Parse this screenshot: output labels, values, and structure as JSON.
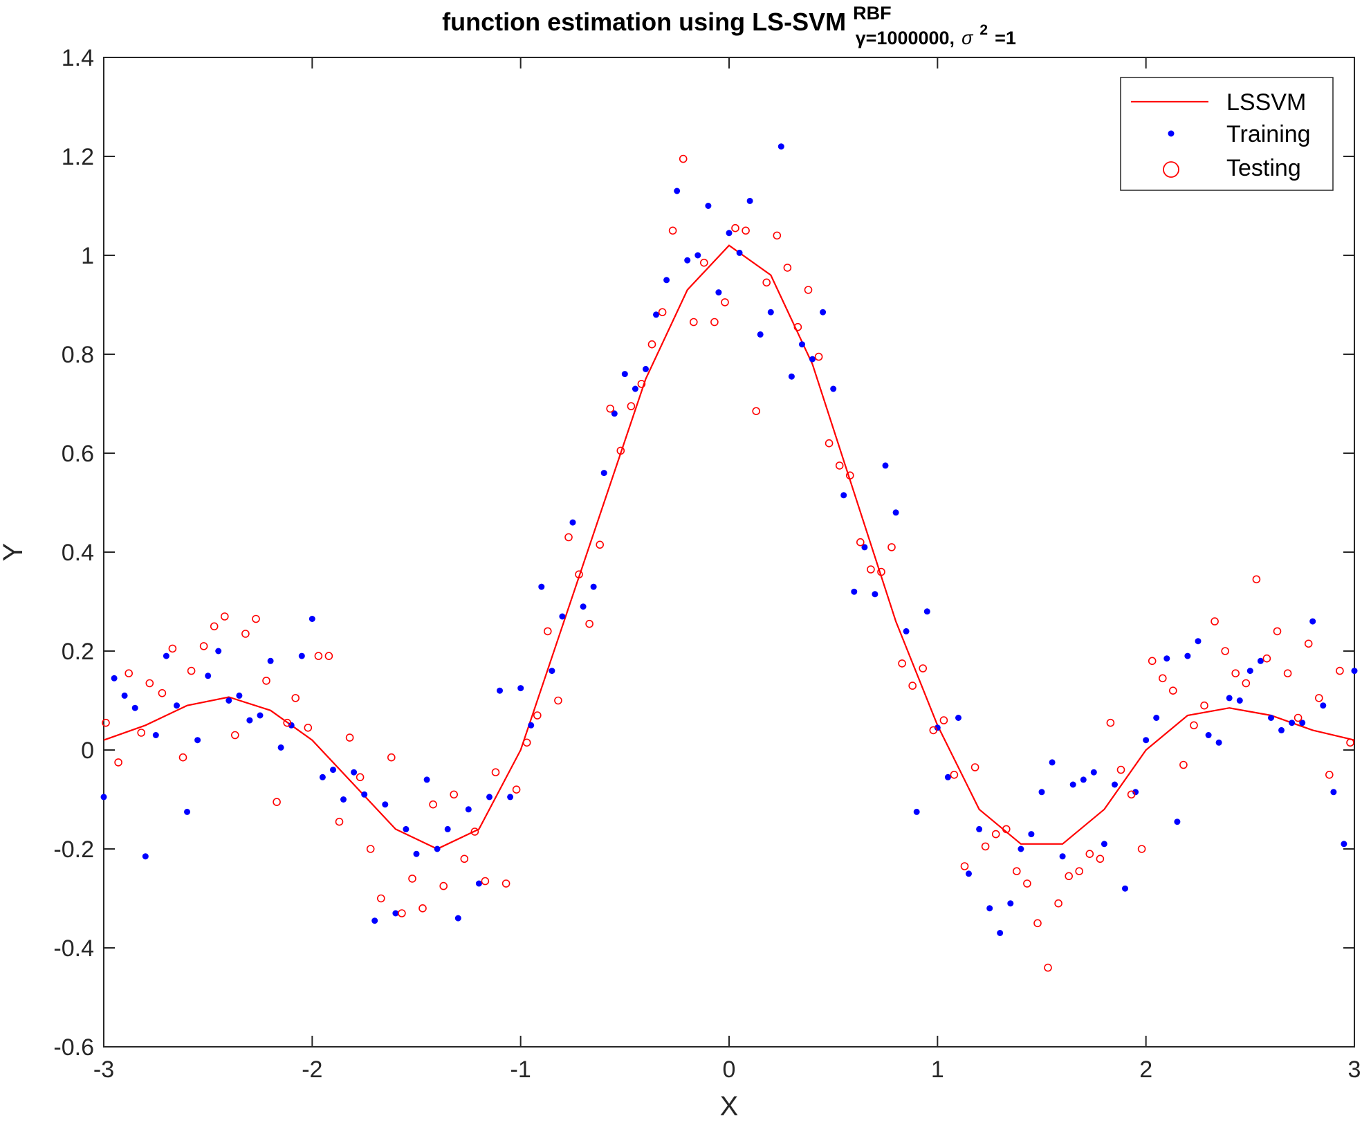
{
  "colors": {
    "training": "#0000ff",
    "testing": "#ff0000",
    "lssvm": "#ff0000",
    "axis": "#262626"
  },
  "chart_data": {
    "type": "scatter",
    "title": {
      "main": "function estimation using  LS-SVM",
      "superscript": "RBF",
      "subscript_gamma": "γ=1000000,",
      "subscript_sigma": "σ",
      "subscript_sigma_power": "2",
      "subscript_end": "=1"
    },
    "xlabel": "X",
    "ylabel": "Y",
    "xlim": [
      -3,
      3
    ],
    "ylim": [
      -0.6,
      1.4
    ],
    "x_ticks": [
      -3,
      -2,
      -1,
      0,
      1,
      2,
      3
    ],
    "x_tick_labels": [
      "-3",
      "-2",
      "-1",
      "0",
      "1",
      "2",
      "3"
    ],
    "y_ticks": [
      -0.6,
      -0.4,
      -0.2,
      0,
      0.2,
      0.4,
      0.6,
      0.8,
      1,
      1.2,
      1.4
    ],
    "y_tick_labels": [
      "-0.6",
      "-0.4",
      "-0.2",
      "0",
      "0.2",
      "0.4",
      "0.6",
      "0.8",
      "1",
      "1.2",
      "1.4"
    ],
    "grid": false,
    "legend_position": "top-right",
    "series": [
      {
        "name": "LSSVM",
        "kind": "line",
        "x": [
          -3,
          -2.8,
          -2.6,
          -2.4,
          -2.2,
          -2.0,
          -1.8,
          -1.6,
          -1.4,
          -1.2,
          -1.0,
          -0.8,
          -0.6,
          -0.4,
          -0.2,
          0,
          0.2,
          0.4,
          0.6,
          0.8,
          1.0,
          1.2,
          1.4,
          1.6,
          1.8,
          2.0,
          2.2,
          2.4,
          2.6,
          2.8,
          3.0
        ],
        "y": [
          0.02,
          0.05,
          0.09,
          0.107,
          0.08,
          0.02,
          -0.07,
          -0.16,
          -0.2,
          -0.16,
          0.0,
          0.25,
          0.5,
          0.75,
          0.93,
          1.02,
          0.96,
          0.78,
          0.52,
          0.26,
          0.05,
          -0.12,
          -0.19,
          -0.19,
          -0.12,
          0.0,
          0.07,
          0.085,
          0.07,
          0.04,
          0.02
        ]
      },
      {
        "name": "Training",
        "kind": "dots",
        "x": [
          -3.0,
          -2.95,
          -2.9,
          -2.85,
          -2.8,
          -2.75,
          -2.7,
          -2.65,
          -2.6,
          -2.55,
          -2.5,
          -2.45,
          -2.4,
          -2.35,
          -2.3,
          -2.25,
          -2.2,
          -2.15,
          -2.1,
          -2.05,
          -2.0,
          -1.95,
          -1.9,
          -1.85,
          -1.8,
          -1.75,
          -1.7,
          -1.65,
          -1.6,
          -1.55,
          -1.5,
          -1.45,
          -1.4,
          -1.35,
          -1.3,
          -1.25,
          -1.2,
          -1.15,
          -1.1,
          -1.05,
          -1.0,
          -0.95,
          -0.9,
          -0.85,
          -0.8,
          -0.75,
          -0.7,
          -0.65,
          -0.6,
          -0.55,
          -0.5,
          -0.45,
          -0.4,
          -0.35,
          -0.3,
          -0.25,
          -0.2,
          -0.15,
          -0.1,
          -0.05,
          0.0,
          0.05,
          0.1,
          0.15,
          0.2,
          0.25,
          0.3,
          0.35,
          0.4,
          0.45,
          0.5,
          0.55,
          0.6,
          0.65,
          0.7,
          0.75,
          0.8,
          0.85,
          0.9,
          0.95,
          1.0,
          1.05,
          1.1,
          1.15,
          1.2,
          1.25,
          1.3,
          1.35,
          1.4,
          1.45,
          1.5,
          1.55,
          1.6,
          1.65,
          1.7,
          1.75,
          1.8,
          1.85,
          1.9,
          1.95,
          2.0,
          2.05,
          2.1,
          2.15,
          2.2,
          2.25,
          2.3,
          2.35,
          2.4,
          2.45,
          2.5,
          2.55,
          2.6,
          2.65,
          2.7,
          2.75,
          2.8,
          2.85,
          2.9,
          2.95,
          3.0
        ],
        "y": [
          -0.095,
          0.145,
          0.11,
          0.085,
          -0.215,
          0.03,
          0.19,
          0.09,
          -0.125,
          0.02,
          0.15,
          0.2,
          0.1,
          0.11,
          0.06,
          0.07,
          0.18,
          0.005,
          0.05,
          0.19,
          0.265,
          -0.055,
          -0.04,
          -0.1,
          -0.045,
          -0.09,
          -0.345,
          -0.11,
          -0.33,
          -0.16,
          -0.21,
          -0.06,
          -0.2,
          -0.16,
          -0.34,
          -0.12,
          -0.27,
          -0.095,
          0.12,
          -0.095,
          0.125,
          0.05,
          0.33,
          0.16,
          0.27,
          0.46,
          0.29,
          0.33,
          0.56,
          0.68,
          0.76,
          0.73,
          0.77,
          0.88,
          0.95,
          1.13,
          0.99,
          1.0,
          1.1,
          0.925,
          1.045,
          1.005,
          1.11,
          0.84,
          0.885,
          1.22,
          0.755,
          0.82,
          0.79,
          0.885,
          0.73,
          0.515,
          0.32,
          0.41,
          0.315,
          0.575,
          0.48,
          0.24,
          -0.125,
          0.28,
          0.045,
          -0.055,
          0.065,
          -0.25,
          -0.16,
          -0.32,
          -0.37,
          -0.31,
          -0.2,
          -0.17,
          -0.085,
          -0.025,
          -0.215,
          -0.07,
          -0.06,
          -0.045,
          -0.19,
          -0.07,
          -0.28,
          -0.085,
          0.02,
          0.065,
          0.185,
          -0.145,
          0.19,
          0.22,
          0.03,
          0.015,
          0.105,
          0.1,
          0.16,
          0.18,
          0.065,
          0.04,
          0.055,
          0.055,
          0.26,
          0.09,
          -0.085,
          -0.19,
          0.16
        ]
      },
      {
        "name": "Testing",
        "kind": "circles",
        "x": [
          -2.99,
          -2.93,
          -2.88,
          -2.82,
          -2.78,
          -2.72,
          -2.67,
          -2.62,
          -2.58,
          -2.52,
          -2.47,
          -2.42,
          -2.37,
          -2.32,
          -2.27,
          -2.22,
          -2.17,
          -2.12,
          -2.08,
          -2.02,
          -1.97,
          -1.92,
          -1.87,
          -1.82,
          -1.77,
          -1.72,
          -1.67,
          -1.62,
          -1.57,
          -1.52,
          -1.47,
          -1.42,
          -1.37,
          -1.32,
          -1.27,
          -1.22,
          -1.17,
          -1.12,
          -1.07,
          -1.02,
          -0.97,
          -0.92,
          -0.87,
          -0.82,
          -0.77,
          -0.72,
          -0.67,
          -0.62,
          -0.57,
          -0.52,
          -0.47,
          -0.42,
          -0.37,
          -0.32,
          -0.27,
          -0.22,
          -0.17,
          -0.12,
          -0.07,
          -0.02,
          0.03,
          0.08,
          0.13,
          0.18,
          0.23,
          0.28,
          0.33,
          0.38,
          0.43,
          0.48,
          0.53,
          0.58,
          0.63,
          0.68,
          0.73,
          0.78,
          0.83,
          0.88,
          0.93,
          0.98,
          1.03,
          1.08,
          1.13,
          1.18,
          1.23,
          1.28,
          1.33,
          1.38,
          1.43,
          1.48,
          1.53,
          1.58,
          1.63,
          1.68,
          1.73,
          1.78,
          1.83,
          1.88,
          1.93,
          1.98,
          2.03,
          2.08,
          2.13,
          2.18,
          2.23,
          2.28,
          2.33,
          2.38,
          2.43,
          2.48,
          2.53,
          2.58,
          2.63,
          2.68,
          2.73,
          2.78,
          2.83,
          2.88,
          2.93,
          2.98
        ],
        "y": [
          0.055,
          -0.025,
          0.155,
          0.035,
          0.135,
          0.115,
          0.205,
          -0.015,
          0.16,
          0.21,
          0.25,
          0.27,
          0.03,
          0.235,
          0.265,
          0.14,
          -0.105,
          0.055,
          0.105,
          0.045,
          0.19,
          0.19,
          -0.145,
          0.025,
          -0.055,
          -0.2,
          -0.3,
          -0.015,
          -0.33,
          -0.26,
          -0.32,
          -0.11,
          -0.275,
          -0.09,
          -0.22,
          -0.165,
          -0.265,
          -0.045,
          -0.27,
          -0.08,
          0.015,
          0.07,
          0.24,
          0.1,
          0.43,
          0.355,
          0.255,
          0.415,
          0.69,
          0.605,
          0.695,
          0.74,
          0.82,
          0.885,
          1.05,
          1.195,
          0.865,
          0.985,
          0.865,
          0.905,
          1.055,
          1.05,
          0.685,
          0.945,
          1.04,
          0.975,
          0.855,
          0.93,
          0.795,
          0.62,
          0.575,
          0.555,
          0.42,
          0.365,
          0.36,
          0.41,
          0.175,
          0.13,
          0.165,
          0.04,
          0.06,
          -0.05,
          -0.235,
          -0.035,
          -0.195,
          -0.17,
          -0.16,
          -0.245,
          -0.27,
          -0.35,
          -0.44,
          -0.31,
          -0.255,
          -0.245,
          -0.21,
          -0.22,
          0.055,
          -0.04,
          -0.09,
          -0.2,
          0.18,
          0.145,
          0.12,
          -0.03,
          0.05,
          0.09,
          0.26,
          0.2,
          0.155,
          0.135,
          0.345,
          0.185,
          0.24,
          0.155,
          0.065,
          0.215,
          0.105,
          -0.05,
          0.16,
          0.015
        ]
      }
    ]
  }
}
